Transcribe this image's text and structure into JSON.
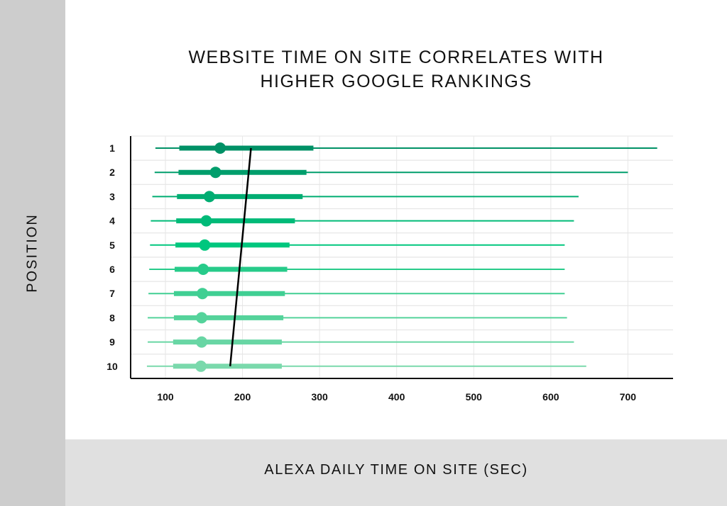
{
  "title_lines": [
    "WEBSITE TIME ON SITE CORRELATES WITH",
    "HIGHER GOOGLE RANKINGS"
  ],
  "chart_data": {
    "type": "scatter",
    "title": "WEBSITE TIME ON SITE CORRELATES WITH HIGHER GOOGLE RANKINGS",
    "xlabel": "ALEXA DAILY TIME ON SITE (SEC)",
    "ylabel": "POSITION",
    "xlim": [
      45,
      750
    ],
    "x_ticks": [
      100,
      200,
      300,
      400,
      500,
      600,
      700
    ],
    "y_ticks": [
      1,
      2,
      3,
      4,
      5,
      6,
      7,
      8,
      9,
      10
    ],
    "grid": true,
    "series": [
      {
        "name": "",
        "positions": [
          1,
          2,
          3,
          4,
          5,
          6,
          7,
          8,
          9,
          10
        ],
        "whisker_low": [
          87,
          86,
          83,
          81,
          80,
          79,
          78,
          77,
          77,
          76
        ],
        "q1": [
          118,
          117,
          115,
          114,
          113,
          112,
          111,
          111,
          110,
          110
        ],
        "median": [
          171,
          165,
          157,
          153,
          151,
          149,
          148,
          147,
          147,
          146
        ],
        "q3": [
          292,
          283,
          278,
          268,
          261,
          258,
          255,
          253,
          251,
          251
        ],
        "whisker_high": [
          738,
          700,
          636,
          630,
          618,
          618,
          618,
          621,
          630,
          646
        ]
      }
    ],
    "trend_line": {
      "x": [
        211,
        184
      ],
      "y": [
        1,
        10
      ]
    },
    "colors": [
      "#009166",
      "#009e6c",
      "#00ad72",
      "#00ba78",
      "#00c77e",
      "#27cb8a",
      "#40cf93",
      "#55d39b",
      "#68d6a4",
      "#7ad9ac"
    ]
  }
}
